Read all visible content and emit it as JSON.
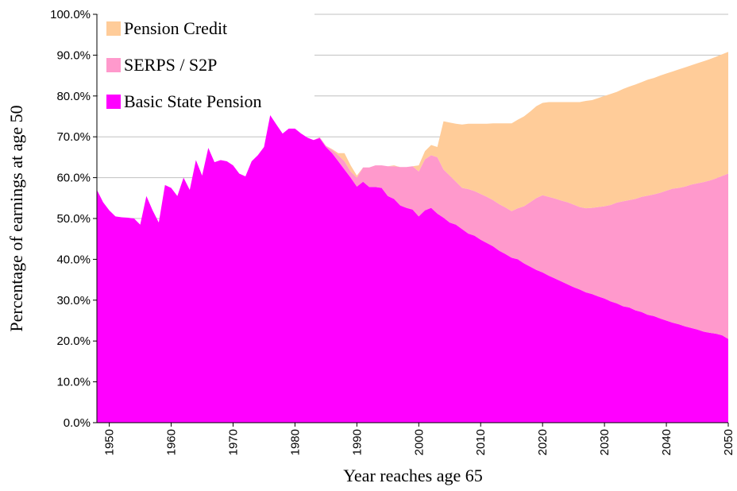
{
  "chart_data": {
    "type": "stacked_area",
    "xlabel": "Year reaches age 65",
    "ylabel": "Percentage of earnings at age 50",
    "x": [
      1948,
      1949,
      1950,
      1951,
      1952,
      1953,
      1954,
      1955,
      1956,
      1957,
      1958,
      1959,
      1960,
      1961,
      1962,
      1963,
      1964,
      1965,
      1966,
      1967,
      1968,
      1969,
      1970,
      1971,
      1972,
      1973,
      1974,
      1975,
      1976,
      1977,
      1978,
      1979,
      1980,
      1981,
      1982,
      1983,
      1984,
      1985,
      1986,
      1987,
      1988,
      1989,
      1990,
      1991,
      1992,
      1993,
      1994,
      1995,
      1996,
      1997,
      1998,
      1999,
      2000,
      2001,
      2002,
      2003,
      2004,
      2005,
      2006,
      2007,
      2008,
      2009,
      2010,
      2011,
      2012,
      2013,
      2014,
      2015,
      2016,
      2017,
      2018,
      2019,
      2020,
      2021,
      2022,
      2023,
      2024,
      2025,
      2026,
      2027,
      2028,
      2029,
      2030,
      2031,
      2032,
      2033,
      2034,
      2035,
      2036,
      2037,
      2038,
      2039,
      2040,
      2041,
      2042,
      2043,
      2044,
      2045,
      2046,
      2047,
      2048,
      2049,
      2050
    ],
    "series": [
      {
        "name": "Basic State Pension",
        "color": "#ff00ff",
        "values": [
          57,
          54,
          52,
          50.5,
          50.3,
          50.2,
          50,
          48.5,
          55.5,
          52,
          49,
          58.2,
          57.5,
          55.5,
          60,
          57,
          64.3,
          60.5,
          67.3,
          63.8,
          64.3,
          64,
          63,
          61,
          60.3,
          64,
          65.5,
          67.5,
          75.3,
          73,
          70.8,
          72,
          72,
          70.8,
          69.8,
          69.2,
          69.7,
          67.5,
          66,
          64,
          62,
          60,
          57.8,
          59,
          57.7,
          57.7,
          57.5,
          55.5,
          54.8,
          53.2,
          52.6,
          52.2,
          50.5,
          52,
          52.6,
          51.2,
          50.2,
          49,
          48.5,
          47.4,
          46.3,
          45.8,
          44.8,
          44,
          43.2,
          42.1,
          41.3,
          40.4,
          40,
          39,
          38.2,
          37.4,
          36.8,
          36,
          35.3,
          34.6,
          33.9,
          33.2,
          32.6,
          31.9,
          31.5,
          30.9,
          30.4,
          29.7,
          29.2,
          28.5,
          28.2,
          27.5,
          27.1,
          26.4,
          26.1,
          25.5,
          25,
          24.5,
          24.1,
          23.6,
          23.2,
          22.8,
          22.3,
          22,
          21.8,
          21.4,
          20.5
        ]
      },
      {
        "name": "SERPS / S2P",
        "color": "#ff99cc",
        "values": [
          0,
          0,
          0,
          0,
          0,
          0,
          0,
          0,
          0,
          0,
          0,
          0,
          0,
          0,
          0,
          0,
          0,
          0,
          0,
          0,
          0,
          0,
          0,
          0,
          0,
          0,
          0,
          0,
          0,
          0,
          0,
          0,
          0,
          0,
          0,
          0,
          0.2,
          0.3,
          0.8,
          1.5,
          2,
          1.5,
          2.2,
          3.5,
          4.8,
          5.3,
          5.5,
          7.3,
          8,
          9.4,
          10,
          10.6,
          11,
          12.5,
          12.9,
          13.8,
          11.8,
          11.5,
          10.5,
          10.1,
          10.9,
          10.9,
          11.2,
          11.3,
          11.3,
          11.4,
          11.4,
          11.4,
          12.5,
          14,
          15.8,
          17.6,
          18.9,
          19.3,
          19.6,
          19.8,
          20.1,
          20.2,
          20.2,
          20.6,
          21.1,
          21.9,
          22.6,
          23.6,
          24.7,
          25.7,
          26.3,
          27.3,
          28.2,
          29.2,
          29.8,
          30.8,
          31.8,
          32.8,
          33.4,
          34.2,
          35.1,
          35.8,
          36.6,
          37.3,
          38,
          39,
          40.5
        ]
      },
      {
        "name": "Pension Credit",
        "color": "#ffcc99",
        "values": [
          0,
          0,
          0,
          0,
          0,
          0,
          0,
          0,
          0,
          0,
          0,
          0,
          0,
          0,
          0,
          0,
          0,
          0,
          0,
          0,
          0,
          0,
          0,
          0,
          0,
          0,
          0,
          0,
          0,
          0,
          0,
          0,
          0,
          0,
          0,
          0,
          0,
          0,
          0.2,
          0.5,
          2,
          1.5,
          0.5,
          0,
          0,
          0,
          0,
          0,
          0.2,
          0,
          0,
          0,
          1.5,
          2,
          2.5,
          2.5,
          11.8,
          13,
          14.2,
          15.5,
          16,
          16.5,
          17.2,
          17.9,
          18.8,
          19.8,
          20.6,
          21.5,
          21.7,
          22,
          22.2,
          22.5,
          22.6,
          23.2,
          23.6,
          24.1,
          24.5,
          25.1,
          25.7,
          26.3,
          26.4,
          26.7,
          27,
          27.2,
          27.1,
          27.5,
          27.8,
          28,
          28.1,
          28.4,
          28.5,
          28.7,
          28.7,
          28.7,
          29,
          29.2,
          29.2,
          29.4,
          29.6,
          29.7,
          29.8,
          29.8,
          29.8
        ]
      }
    ],
    "xlim": [
      1948,
      2050
    ],
    "xticks": [
      1950,
      1960,
      1970,
      1980,
      1990,
      2000,
      2010,
      2020,
      2030,
      2040,
      2050
    ],
    "ylim": [
      0,
      100
    ],
    "yticks": [
      {
        "value": 0,
        "label": "0.0%"
      },
      {
        "value": 10,
        "label": "10.0%"
      },
      {
        "value": 20,
        "label": "20.0%"
      },
      {
        "value": 30,
        "label": "30.0%"
      },
      {
        "value": 40,
        "label": "40.0%"
      },
      {
        "value": 50,
        "label": "50.0%"
      },
      {
        "value": 60,
        "label": "60.0%"
      },
      {
        "value": 70,
        "label": "70.0%"
      },
      {
        "value": 80,
        "label": "80.0%"
      },
      {
        "value": 90,
        "label": "90.0%"
      },
      {
        "value": 100,
        "label": "100.0%"
      }
    ],
    "grid": true,
    "legend": "upper left"
  }
}
